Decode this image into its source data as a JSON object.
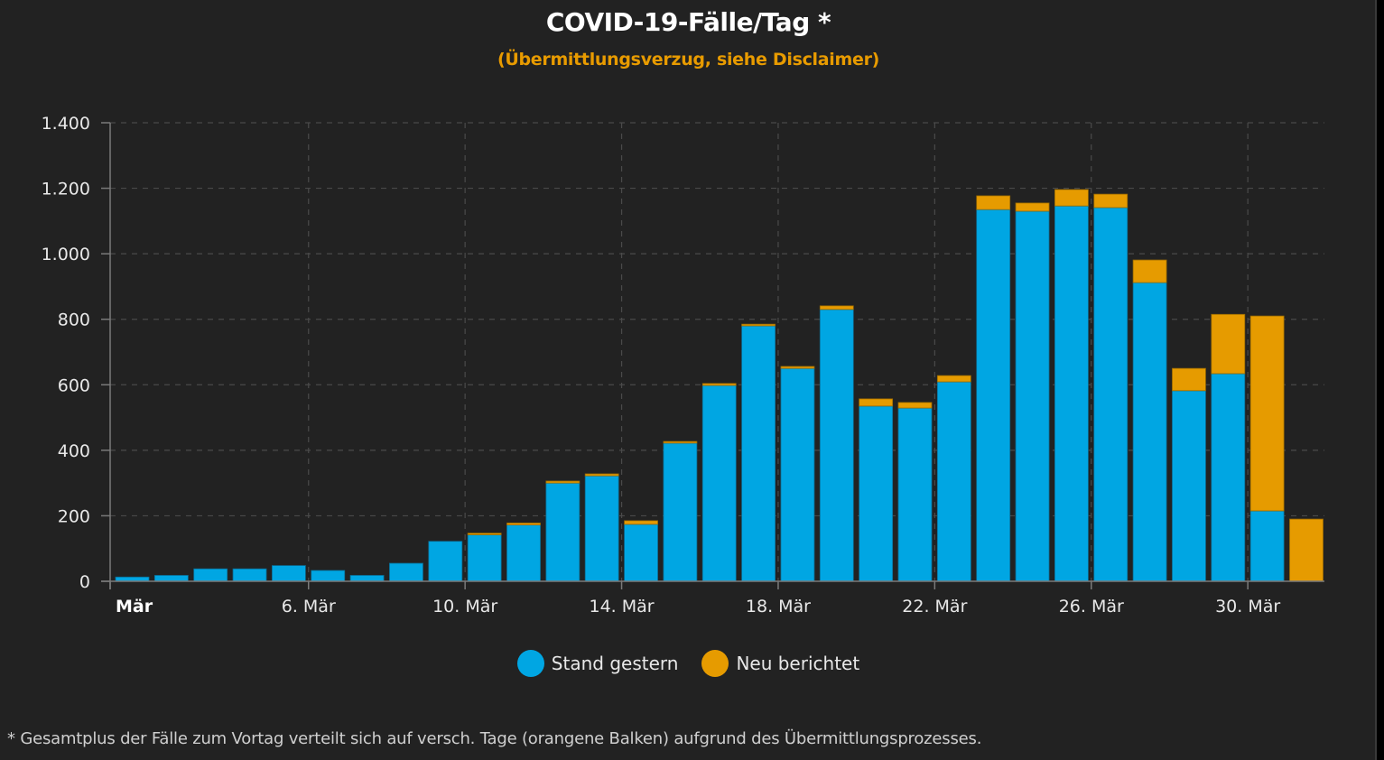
{
  "chart_data": {
    "type": "bar",
    "stacked": true,
    "title": "COVID-19-Fälle/Tag *",
    "subtitle": "(Übermittlungsverzug, siehe Disclaimer)",
    "xlabel": "",
    "ylabel": "",
    "ylim": [
      0,
      1400
    ],
    "yticks": [
      0,
      200,
      400,
      600,
      800,
      1000,
      1200,
      1400
    ],
    "ytick_labels": [
      "0",
      "200",
      "400",
      "600",
      "800",
      "1.000",
      "1.200",
      "1.400"
    ],
    "xtick_labels": [
      {
        "day_index": 0,
        "label": "Mär",
        "bold": true
      },
      {
        "day_index": 5,
        "label": "6. Mär",
        "bold": false
      },
      {
        "day_index": 9,
        "label": "10. Mär",
        "bold": false
      },
      {
        "day_index": 13,
        "label": "14. Mär",
        "bold": false
      },
      {
        "day_index": 17,
        "label": "18. Mär",
        "bold": false
      },
      {
        "day_index": 21,
        "label": "22. Mär",
        "bold": false
      },
      {
        "day_index": 25,
        "label": "26. Mär",
        "bold": false
      },
      {
        "day_index": 29,
        "label": "30. Mär",
        "bold": false
      }
    ],
    "categories": [
      "1. Mär",
      "2. Mär",
      "3. Mär",
      "4. Mär",
      "5. Mär",
      "6. Mär",
      "7. Mär",
      "8. Mär",
      "9. Mär",
      "10. Mär",
      "11. Mär",
      "12. Mär",
      "13. Mär",
      "14. Mär",
      "15. Mär",
      "16. Mär",
      "17. Mär",
      "18. Mär",
      "19. Mär",
      "20. Mär",
      "21. Mär",
      "22. Mär",
      "23. Mär",
      "24. Mär",
      "25. Mär",
      "26. Mär",
      "27. Mär",
      "28. Mär",
      "29. Mär",
      "30. Mär",
      "31. Mär"
    ],
    "series": [
      {
        "name": "Stand gestern",
        "color": "#00a6e3",
        "values": [
          13,
          18,
          38,
          38,
          48,
          33,
          18,
          55,
          122,
          142,
          172,
          300,
          322,
          174,
          422,
          598,
          780,
          650,
          830,
          535,
          529,
          609,
          1135,
          1130,
          1146,
          1141,
          912,
          582,
          634,
          215,
          0
        ]
      },
      {
        "name": "Neu berichtet",
        "color": "#e69b00",
        "values": [
          0,
          0,
          0,
          0,
          0,
          0,
          0,
          0,
          0,
          5,
          6,
          6,
          6,
          11,
          5,
          6,
          5,
          6,
          11,
          22,
          17,
          19,
          42,
          25,
          50,
          41,
          69,
          68,
          181,
          595,
          190
        ]
      }
    ],
    "grid": true,
    "legend": "bottom-center"
  },
  "legend": {
    "items": [
      {
        "label": "Stand gestern",
        "color": "#00a6e3"
      },
      {
        "label": "Neu berichtet",
        "color": "#e69b00"
      }
    ]
  },
  "footnote": "* Gesamtplus der Fälle zum Vortag verteilt sich auf versch. Tage (orangene Balken) aufgrund des Übermittlungsprozesses."
}
